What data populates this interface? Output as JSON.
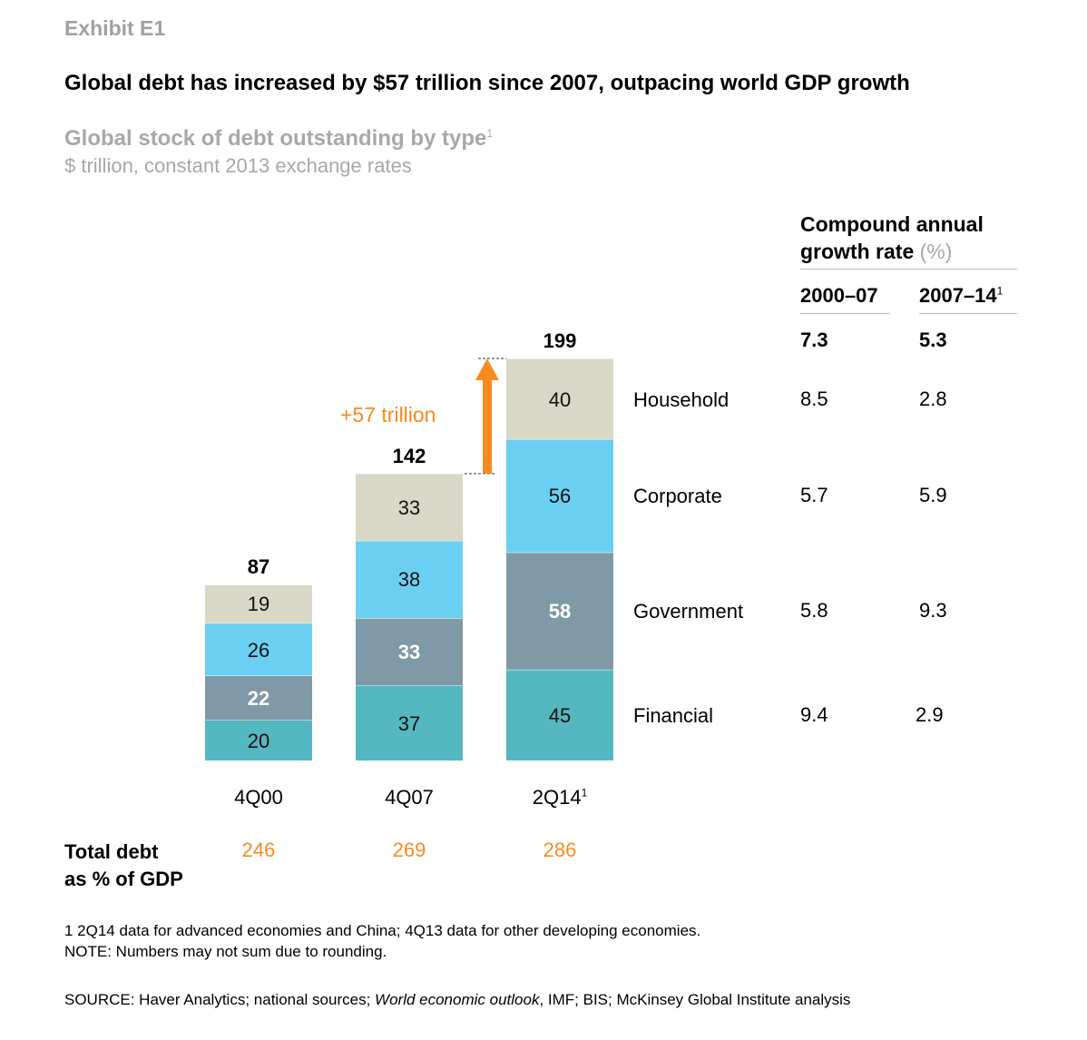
{
  "exhibit": "Exhibit E1",
  "title": "Global debt has increased by $57 trillion since 2007, outpacing world GDP growth",
  "subtitle": "Global stock of debt outstanding by type",
  "subtitle_sup": "1",
  "unit": "$ trillion, constant 2013 exchange rates",
  "cagr": {
    "title": "Compound annual growth rate",
    "unit": "(%)",
    "col1": "2000–07",
    "col2": "2007–14",
    "col2_sup": "1",
    "total": [
      "7.3",
      "5.3"
    ],
    "rows": [
      [
        "8.5",
        "2.8"
      ],
      [
        "5.7",
        "5.9"
      ],
      [
        "5.8",
        "9.3"
      ],
      [
        "9.4",
        "2.9"
      ]
    ]
  },
  "annotation": "+57 trillion",
  "gdp_label": [
    "Total debt",
    "as % of GDP"
  ],
  "footnotes": [
    "1  2Q14 data for advanced economies and China; 4Q13 data for other developing economies.",
    "NOTE: Numbers may not sum due to rounding."
  ],
  "source": {
    "pre": "SOURCE:  Haver Analytics; national sources; ",
    "italic": "World economic outlook",
    "post": ", IMF; BIS; McKinsey Global Institute analysis"
  },
  "chart_data": {
    "type": "bar",
    "stacked": true,
    "categories": [
      "4Q00",
      "4Q07",
      "2Q14"
    ],
    "category_sups": [
      "",
      "",
      "1"
    ],
    "totals": [
      87,
      142,
      199
    ],
    "gdp_pct": [
      246,
      269,
      286
    ],
    "series": [
      {
        "name": "Financial",
        "values": [
          20,
          37,
          45
        ],
        "color": "#55b7bf"
      },
      {
        "name": "Government",
        "values": [
          22,
          33,
          58
        ],
        "color": "#7f99a6"
      },
      {
        "name": "Corporate",
        "values": [
          26,
          38,
          56
        ],
        "color": "#6bcff2"
      },
      {
        "name": "Household",
        "values": [
          19,
          33,
          40
        ],
        "color": "#d9d8c6"
      }
    ],
    "arrow_color": "#f68b1f"
  }
}
